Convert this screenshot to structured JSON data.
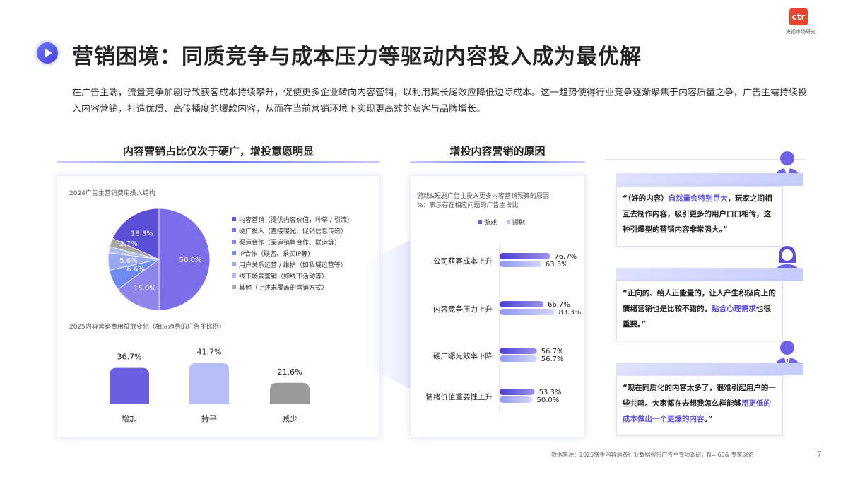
{
  "header": {
    "title": "营销困境：同质竞争与成本压力等驱动内容投入成为最优解",
    "intro": "在广告主端，流量竞争加剧导致获客成本持续攀升，促使更多企业转向内容营销，以利用其长尾效应降低边际成本。这一趋势使得行业竞争逐渐聚焦于内容质量之争，广告主需持续投入内容营销，打造优质、高传播度的爆款内容，从而在当前营销环境下实现更高效的获客与品牌增长。",
    "logo_mark": "ctr",
    "logo_sub": "央视市场研究"
  },
  "left_section": {
    "heading": "内容营销占比仅次于硬广，增投意愿明显",
    "pie_caption": "2024广告主营销费用投入结构",
    "bar_caption": "2025内容营销费用投放变化（相应趋势的广告主比例）"
  },
  "middle_section": {
    "heading": "增投内容营销的原因",
    "caption_line1": "游戏&短剧广告主投入更多内容营销预算的原因",
    "caption_line2": "%：表示存在相应问题的广告主占比"
  },
  "quotes": [
    {
      "pre": "“（好的内容）",
      "hl": "自然量会特别巨大",
      "post": "，玩家之间相互去制作内容，吸引更多的用户口口相传，这种引爆型的营销内容非常强大。”"
    },
    {
      "pre": "“正向的、给人正能量的，让人产生积极向上的情绪营销也是比较不错的，",
      "hl": "贴合心理需求",
      "post": "也很重要。”"
    },
    {
      "pre": "“现在同质化的内容太多了，很难引起用户的一些共鸣。大家都在去想我怎么样能够",
      "hl": "用更低的成本做出一个更爆的内容",
      "post": "。”"
    }
  ],
  "footer": {
    "source": "数据来源：2025快手内容消费行业数据报告广告主专项调研，N= 60& 专家深访",
    "page": "7"
  },
  "colors": {
    "accent": "#5a4fe0",
    "pie": [
      "#5b4fd6",
      "#7b6ee8",
      "#8e86ea",
      "#6f8af0",
      "#9aa7f4",
      "#aebcf6",
      "#a8a8a8"
    ],
    "bars_main": "#6b5fe2",
    "bars_light": "#b7bdf7",
    "bars_gray": "#9a9a9a"
  },
  "chart_data": [
    {
      "type": "pie",
      "title": "2024广告主营销费用投入结构",
      "categories": [
        "内容营销（提供内容价值，种草 / 引流）",
        "硬广投入（直接曝光、促销信息传递）",
        "渠道合作（渠道销售合作、联运等）",
        "IP合作（联名、采买IP等）",
        "用户关系运营 / 维护（如私域运营等）",
        "线下场景营销（如线下活动等）",
        "其他（上述未覆盖的营销方式）"
      ],
      "values": [
        18.3,
        50.0,
        15.0,
        6.6,
        5.6,
        1.9,
        2.7
      ],
      "labels": [
        "18.3%",
        "50.0%",
        "15.0%",
        "6.6%",
        "5.6%",
        "1.9%",
        "2.7%"
      ],
      "legend_placement": "right"
    },
    {
      "type": "bar",
      "title": "2025内容营销费用投放变化（相应趋势的广告主比例）",
      "categories": [
        "增加",
        "持平",
        "减少"
      ],
      "values": [
        36.7,
        41.7,
        21.6
      ],
      "labels": [
        "36.7%",
        "41.7%",
        "21.6%"
      ]
    },
    {
      "type": "bar",
      "orientation": "horizontal",
      "title": "游戏&短剧广告主投入更多内容营销预算的原因",
      "categories": [
        "公司获客成本上升",
        "内容竞争压力上升",
        "硬广曝光效率下降",
        "情绪价值重要性上升"
      ],
      "series": [
        {
          "name": "游戏",
          "values": [
            76.7,
            66.7,
            56.7,
            53.3
          ],
          "labels": [
            "76.7%",
            "66.7%",
            "56.7%",
            "53.3%"
          ]
        },
        {
          "name": "短剧",
          "values": [
            63.3,
            83.3,
            56.7,
            50.0
          ],
          "labels": [
            "63.3%",
            "83.3%",
            "56.7%",
            "50.0%"
          ]
        }
      ],
      "legend_placement": "top"
    }
  ]
}
